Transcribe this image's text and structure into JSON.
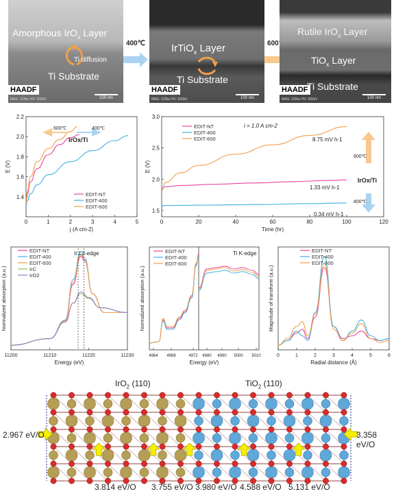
{
  "tem": {
    "panels": [
      {
        "layers": [
          "Amorphous IrO",
          "x",
          " Layer"
        ],
        "diffusion": "Ti diffusion",
        "substrate": "Ti Substrate",
        "haadf": "HAADF",
        "mag": "MAG: 225kx  HV: 200kV",
        "scale": "100 nm"
      },
      {
        "layers": [
          "IrTiO",
          "x",
          " Layer"
        ],
        "substrate": "Ti Substrate",
        "haadf": "HAADF",
        "mag": "MAG: 225kx  HV: 200kV",
        "scale": "100 nm"
      },
      {
        "top": [
          "Rutile IrO",
          "x",
          " Layer"
        ],
        "mid": [
          "TiO",
          "x",
          " Layer"
        ],
        "substrate": "Ti Substrate",
        "haadf": "HAADF",
        "mag": "MAG: 225kx  HV: 200kV",
        "scale": "100 nm"
      }
    ],
    "arrows": [
      "400℃",
      "600℃"
    ]
  },
  "colors": {
    "nt": "#e8429a",
    "c400": "#3fb0e3",
    "c600": "#f0a04a",
    "irc": "#8cc34a",
    "iro2": "#9b7fc7",
    "gold": "#b59e55",
    "ti": "#5fa8d8",
    "o": "#d82c2c",
    "yellow": "#f5f000"
  },
  "chart_data": [
    {
      "type": "line",
      "xlabel": "j (A cm-2)",
      "ylabel": "E (V)",
      "xlim": [
        0,
        5
      ],
      "ylim": [
        1.2,
        2.2
      ],
      "xticks": [
        "0",
        "1",
        "2",
        "3",
        "4",
        "5"
      ],
      "yticks": [
        "1.4",
        "1.6",
        "1.8",
        "2.0",
        "2.2"
      ],
      "annotations": [
        "600℃",
        "400℃",
        "IrOx/Ti"
      ],
      "series": [
        {
          "name": "EDIT-NT",
          "x": [
            0,
            0.05,
            0.2,
            0.5,
            1.0,
            1.5,
            2.0,
            2.4
          ],
          "y": [
            1.32,
            1.42,
            1.55,
            1.68,
            1.82,
            1.92,
            1.99,
            2.02
          ]
        },
        {
          "name": "EDIT-400",
          "x": [
            0,
            0.05,
            0.2,
            0.5,
            1.0,
            2.0,
            3.0,
            4.0,
            4.6
          ],
          "y": [
            1.3,
            1.36,
            1.43,
            1.52,
            1.62,
            1.75,
            1.86,
            1.96,
            2.01
          ]
        },
        {
          "name": "EDIT-600",
          "x": [
            0,
            0.05,
            0.2,
            0.5,
            1.0,
            1.5,
            2.0,
            2.3
          ],
          "y": [
            1.33,
            1.45,
            1.6,
            1.75,
            1.88,
            1.97,
            2.05,
            2.1
          ]
        }
      ]
    },
    {
      "type": "line",
      "xlabel": "Time (hr)",
      "ylabel": "E (V)",
      "xlim": [
        0,
        120
      ],
      "ylim": [
        1.4,
        3.0
      ],
      "xticks": [
        "0",
        "20",
        "40",
        "60",
        "80",
        "100",
        "120"
      ],
      "yticks": [
        "1.5",
        "2.0",
        "2.5",
        "3.0"
      ],
      "annotations": [
        "i = 1.0 A cm-2",
        "8.75 mV h-1",
        "1.33 mV h-1",
        "0.34 mV h-1",
        "600℃",
        "IrOx/Ti",
        "400℃"
      ],
      "series": [
        {
          "name": "EDIT-NT",
          "x": [
            0,
            2,
            10,
            30,
            50,
            70,
            90,
            100
          ],
          "y": [
            1.86,
            1.88,
            1.9,
            1.92,
            1.94,
            1.96,
            1.98,
            1.99
          ]
        },
        {
          "name": "EDIT-400",
          "x": [
            0,
            2,
            20,
            50,
            80,
            100
          ],
          "y": [
            1.57,
            1.58,
            1.585,
            1.595,
            1.61,
            1.62
          ]
        },
        {
          "name": "EDIT-600",
          "x": [
            0,
            2,
            10,
            20,
            40,
            60,
            80,
            100
          ],
          "y": [
            1.82,
            1.95,
            2.1,
            2.22,
            2.4,
            2.55,
            2.7,
            2.84
          ]
        }
      ]
    },
    {
      "type": "line",
      "xlabel": "Energy (eV)",
      "ylabel": "Normalized absorption (a.u.)",
      "xlim": [
        11200,
        11230
      ],
      "xticks": [
        "11200",
        "11210",
        "11220",
        "11230"
      ],
      "annotations": [
        "Ir L3-edge"
      ],
      "series": [
        {
          "name": "EDIT-NT",
          "x": [
            11200,
            11210,
            11214,
            11216,
            11218,
            11219,
            11221,
            11224,
            11230
          ],
          "y": [
            0.05,
            0.12,
            0.3,
            0.7,
            1.0,
            0.95,
            0.6,
            0.4,
            0.4
          ]
        },
        {
          "name": "EDIT-400",
          "x": [
            11200,
            11210,
            11214,
            11216,
            11218,
            11219,
            11221,
            11224,
            11230
          ],
          "y": [
            0.05,
            0.12,
            0.32,
            0.75,
            1.05,
            0.98,
            0.6,
            0.4,
            0.4
          ]
        },
        {
          "name": "EDIT-600",
          "x": [
            11200,
            11210,
            11214,
            11216,
            11218,
            11219,
            11221,
            11224,
            11230
          ],
          "y": [
            0.05,
            0.12,
            0.31,
            0.72,
            1.02,
            0.96,
            0.6,
            0.4,
            0.4
          ]
        },
        {
          "name": "IrC",
          "x": [
            11200,
            11210,
            11214,
            11216,
            11218,
            11220,
            11223,
            11230
          ],
          "y": [
            0.05,
            0.12,
            0.3,
            0.5,
            0.6,
            0.55,
            0.45,
            0.4
          ]
        },
        {
          "name": "IrO2",
          "x": [
            11200,
            11210,
            11214,
            11216,
            11218,
            11220,
            11223,
            11230
          ],
          "y": [
            0.05,
            0.12,
            0.3,
            0.5,
            0.62,
            0.56,
            0.45,
            0.4
          ]
        }
      ]
    },
    {
      "type": "line",
      "xlabel": "Energy (eV)",
      "ylabel": "Normalized absorption (a.u.)",
      "xticks": [
        "4964",
        "4968",
        "4972",
        "4980",
        "4990",
        "5000",
        "5010"
      ],
      "annotations": [
        "Ti K-edge"
      ],
      "series": [
        {
          "name": "EDIT-NT"
        },
        {
          "name": "EDIT-400"
        },
        {
          "name": "EDIT-600"
        }
      ]
    },
    {
      "type": "line",
      "xlabel": "Radial distance (Å)",
      "ylabel": "Magnitude of transform (a.u.)",
      "xlim": [
        0,
        6
      ],
      "xticks": [
        "0",
        "1",
        "2",
        "3",
        "4",
        "5",
        "6"
      ],
      "series": [
        {
          "name": "EDIT-NT",
          "x": [
            0,
            0.5,
            1.0,
            1.3,
            1.6,
            2.0,
            2.5,
            3.0,
            3.5,
            4.0,
            4.5,
            5.0,
            5.5,
            6.0
          ],
          "y": [
            0.05,
            0.1,
            0.18,
            0.22,
            0.12,
            0.35,
            0.88,
            0.25,
            0.12,
            0.15,
            0.2,
            0.12,
            0.1,
            0.12
          ]
        },
        {
          "name": "EDIT-400",
          "x": [
            0,
            0.5,
            1.0,
            1.3,
            1.6,
            2.0,
            2.5,
            3.0,
            3.5,
            4.0,
            4.5,
            5.0,
            5.5,
            6.0
          ],
          "y": [
            0.05,
            0.1,
            0.2,
            0.15,
            0.1,
            0.4,
            1.0,
            0.25,
            0.1,
            0.2,
            0.32,
            0.15,
            0.1,
            0.12
          ]
        },
        {
          "name": "EDIT-600",
          "x": [
            0,
            0.5,
            1.0,
            1.3,
            1.6,
            2.0,
            2.5,
            3.0,
            3.5,
            4.0,
            4.5,
            5.0,
            5.5,
            6.0
          ],
          "y": [
            0.05,
            0.12,
            0.25,
            0.3,
            0.15,
            0.38,
            0.92,
            0.22,
            0.1,
            0.18,
            0.28,
            0.12,
            0.08,
            0.1
          ]
        }
      ]
    }
  ],
  "structure": {
    "left_label": [
      "IrO",
      "2",
      " (110)"
    ],
    "right_label": [
      "TiO",
      "2",
      " (110)"
    ],
    "left_energy": "2.967 eV/O",
    "right_energy": "3.358 eV/O",
    "bottom_energies": [
      "3.814 eV/O",
      "3.755 eV/O",
      "3.980 eV/O",
      "4.588 eV/O",
      "5.131 eV/O"
    ]
  }
}
